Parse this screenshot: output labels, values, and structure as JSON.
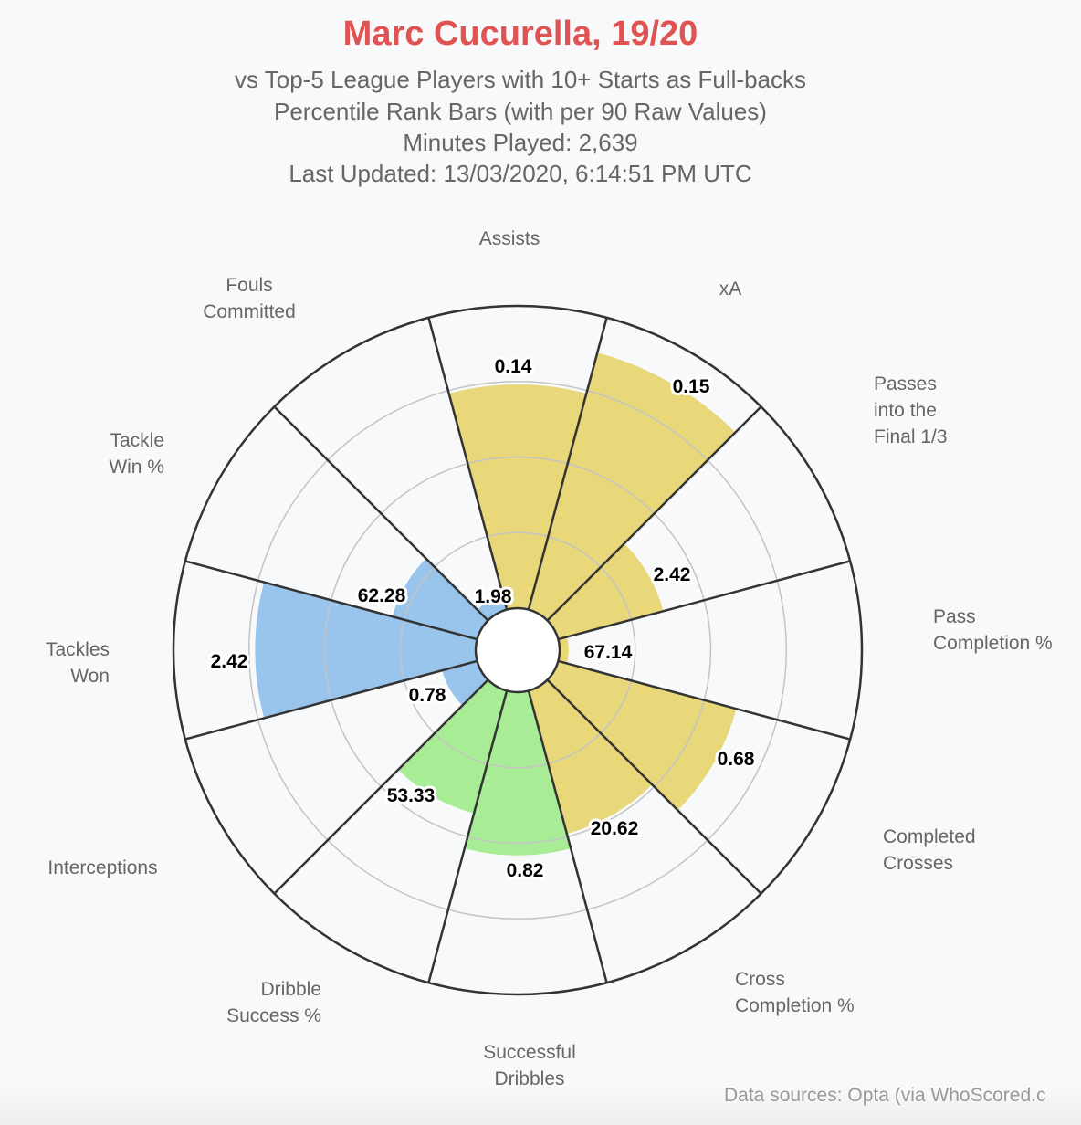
{
  "header": {
    "title": "Marc Cucurella, 19/20",
    "subtitle_1": "vs Top-5 League Players with 10+ Starts as Full-backs",
    "subtitle_2": "Percentile Rank Bars (with per 90 Raw Values)",
    "subtitle_3": "Minutes Played: 2,639",
    "subtitle_4": "Last Updated: 13/03/2020, 6:14:51 PM UTC"
  },
  "footer": "Data sources: Opta (via WhoScored.c",
  "colors": {
    "attack": "#e8d87a",
    "dribble": "#a8ec96",
    "defense": "#99c4ec",
    "title": "#e05353"
  },
  "chart_data": {
    "type": "polar-bar",
    "title": "Marc Cucurella, 19/20",
    "radial_axis": {
      "range": [
        0,
        100
      ],
      "gridlines": [
        25,
        50,
        75,
        100
      ],
      "unit": "percentile"
    },
    "categories": [
      "Assists",
      "xA",
      "Passes into the Final 1/3",
      "Pass Completion %",
      "Completed Crosses",
      "Cross Completion %",
      "Successful Dribbles",
      "Dribble Success %",
      "Interceptions",
      "Tackles Won",
      "Tackle Win %",
      "Fouls Committed"
    ],
    "percentiles": [
      74,
      88,
      36,
      3,
      61,
      49,
      54,
      42,
      12,
      73,
      29,
      5
    ],
    "raw_values": [
      "0.14",
      "0.15",
      "2.42",
      "67.14",
      "0.68",
      "20.62",
      "0.82",
      "53.33",
      "0.78",
      "2.42",
      "62.28",
      "1.98"
    ],
    "groups": [
      "attack",
      "attack",
      "attack",
      "attack",
      "attack",
      "attack",
      "dribble",
      "dribble",
      "defense",
      "defense",
      "defense",
      "defense"
    ]
  }
}
